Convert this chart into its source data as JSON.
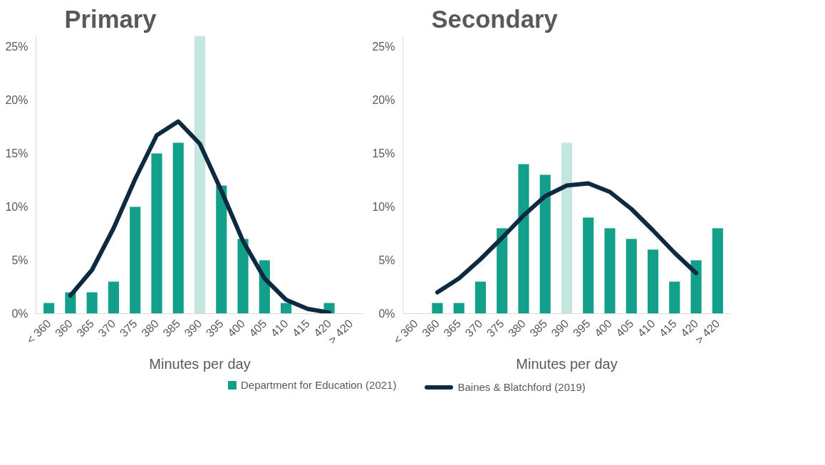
{
  "chart_data": [
    {
      "type": "bar",
      "title": "Primary",
      "xlabel": "Minutes per day",
      "categories": [
        "< 360",
        "360",
        "365",
        "370",
        "375",
        "380",
        "385",
        "390",
        "395",
        "400",
        "405",
        "410",
        "415",
        "420",
        "> 420"
      ],
      "ylim": [
        0,
        26
      ],
      "yticks": [
        {
          "value": 0,
          "label": "0%"
        },
        {
          "value": 5,
          "label": "5%"
        },
        {
          "value": 10,
          "label": "10%"
        },
        {
          "value": 15,
          "label": "15%"
        },
        {
          "value": 20,
          "label": "20%"
        },
        {
          "value": 25,
          "label": "25%"
        }
      ],
      "grid": false,
      "legend": "bottom",
      "series": [
        {
          "name": "Department for Education (2021)",
          "color": "#13a08a",
          "colors": [
            "#13a08a",
            "#13a08a",
            "#13a08a",
            "#13a08a",
            "#13a08a",
            "#13a08a",
            "#13a08a",
            "#c3e6df",
            "#13a08a",
            "#13a08a",
            "#13a08a",
            "#13a08a",
            "#13a08a",
            "#13a08a",
            "#13a08a"
          ],
          "values": [
            1,
            2,
            2,
            3,
            10,
            15,
            16,
            26,
            12,
            7,
            5,
            1,
            0,
            1,
            0
          ]
        },
        {
          "name": "Baines & Blatchford (2019)",
          "type": "line",
          "color": "#0d2a40",
          "values": [
            null,
            1.7,
            4.1,
            8,
            12.6,
            16.7,
            18,
            15.9,
            11.5,
            6.8,
            3.3,
            1.3,
            0.45,
            0.1,
            null
          ]
        }
      ]
    },
    {
      "type": "bar",
      "title": "Secondary",
      "xlabel": "Minutes per day",
      "categories": [
        "< 360",
        "360",
        "365",
        "370",
        "375",
        "380",
        "385",
        "390",
        "395",
        "400",
        "405",
        "410",
        "415",
        "420",
        "> 420"
      ],
      "ylim": [
        0,
        26
      ],
      "yticks": [
        {
          "value": 0,
          "label": "0%"
        },
        {
          "value": 5,
          "label": "5%"
        },
        {
          "value": 10,
          "label": "10%"
        },
        {
          "value": 15,
          "label": "15%"
        },
        {
          "value": 20,
          "label": "20%"
        },
        {
          "value": 25,
          "label": "25%"
        }
      ],
      "grid": false,
      "series": [
        {
          "color": "#13a08a",
          "colors": [
            "#13a08a",
            "#13a08a",
            "#13a08a",
            "#13a08a",
            "#13a08a",
            "#13a08a",
            "#13a08a",
            "#c3e6df",
            "#13a08a",
            "#13a08a",
            "#13a08a",
            "#13a08a",
            "#13a08a",
            "#13a08a",
            "#13a08a"
          ],
          "values": [
            0,
            1,
            1,
            3,
            8,
            14,
            13,
            16,
            9,
            8,
            7,
            6,
            3,
            5,
            8
          ]
        },
        {
          "type": "line",
          "color": "#0d2a40",
          "values": [
            null,
            2.0,
            3.3,
            5.1,
            7.1,
            9.2,
            11,
            12,
            12.2,
            11.4,
            9.8,
            7.8,
            5.7,
            3.8,
            null
          ]
        }
      ]
    }
  ]
}
